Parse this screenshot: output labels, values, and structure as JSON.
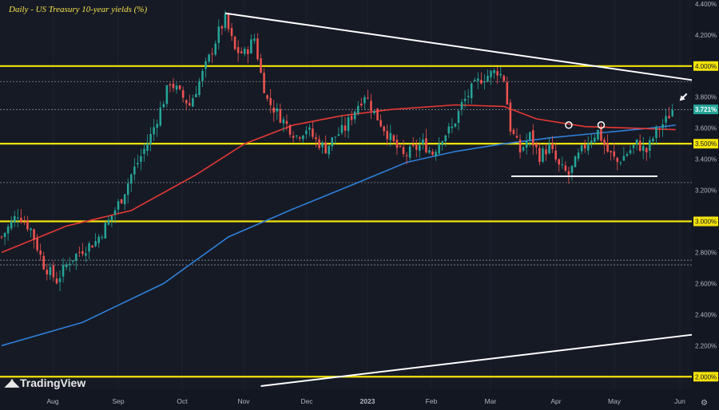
{
  "chart_data": {
    "type": "candlestick",
    "title": "Daily - US Treasury 10-year yields (%)",
    "ylim": [
      1.95,
      4.42
    ],
    "y_ticks": [
      "4.400%",
      "4.200%",
      "4.000%",
      "3.800%",
      "3.600%",
      "3.500%",
      "3.400%",
      "3.200%",
      "3.000%",
      "2.800%",
      "2.600%",
      "2.400%",
      "2.200%",
      "2.000%"
    ],
    "x_ticks": [
      "Aug",
      "Sep",
      "Oct",
      "Nov",
      "Dec",
      "2023",
      "Feb",
      "Mar",
      "Apr",
      "May",
      "Jun"
    ],
    "last_price_label": "3.721%",
    "horizontal_levels": [
      4.0,
      3.5,
      3.0,
      2.0
    ],
    "dotted_levels": [
      3.9,
      3.72,
      3.25,
      2.75,
      2.72
    ],
    "support_line": {
      "from_month": "Mar",
      "to_month": "May",
      "value": 3.29
    },
    "close_path": [
      [
        0,
        2.9
      ],
      [
        5,
        3.05
      ],
      [
        9,
        2.95
      ],
      [
        13,
        2.72
      ],
      [
        17,
        2.62
      ],
      [
        21,
        2.75
      ],
      [
        25,
        2.82
      ],
      [
        29,
        2.87
      ],
      [
        33,
        3.0
      ],
      [
        37,
        3.15
      ],
      [
        40,
        3.3
      ],
      [
        43,
        3.42
      ],
      [
        46,
        3.55
      ],
      [
        49,
        3.72
      ],
      [
        52,
        3.9
      ],
      [
        55,
        3.82
      ],
      [
        58,
        3.75
      ],
      [
        61,
        3.9
      ],
      [
        64,
        4.05
      ],
      [
        67,
        4.22
      ],
      [
        69,
        4.3
      ],
      [
        72,
        4.1
      ],
      [
        75,
        4.08
      ],
      [
        78,
        4.18
      ],
      [
        80,
        3.95
      ],
      [
        82,
        3.78
      ],
      [
        85,
        3.7
      ],
      [
        88,
        3.62
      ],
      [
        91,
        3.55
      ],
      [
        94,
        3.6
      ],
      [
        97,
        3.52
      ],
      [
        100,
        3.47
      ],
      [
        103,
        3.55
      ],
      [
        106,
        3.6
      ],
      [
        109,
        3.72
      ],
      [
        112,
        3.82
      ],
      [
        115,
        3.7
      ],
      [
        118,
        3.6
      ],
      [
        121,
        3.5
      ],
      [
        124,
        3.42
      ],
      [
        127,
        3.46
      ],
      [
        130,
        3.5
      ],
      [
        133,
        3.44
      ],
      [
        136,
        3.55
      ],
      [
        139,
        3.6
      ],
      [
        142,
        3.75
      ],
      [
        145,
        3.85
      ],
      [
        148,
        3.92
      ],
      [
        151,
        3.95
      ],
      [
        153,
        3.97
      ],
      [
        155,
        3.92
      ],
      [
        157,
        3.6
      ],
      [
        160,
        3.45
      ],
      [
        163,
        3.55
      ],
      [
        166,
        3.42
      ],
      [
        169,
        3.48
      ],
      [
        172,
        3.35
      ],
      [
        175,
        3.3
      ],
      [
        178,
        3.42
      ],
      [
        181,
        3.52
      ],
      [
        184,
        3.58
      ],
      [
        187,
        3.45
      ],
      [
        190,
        3.38
      ],
      [
        193,
        3.44
      ],
      [
        196,
        3.5
      ],
      [
        199,
        3.45
      ],
      [
        202,
        3.58
      ],
      [
        205,
        3.65
      ],
      [
        207,
        3.72
      ]
    ],
    "ma_red": [
      [
        0,
        2.8
      ],
      [
        20,
        2.97
      ],
      [
        40,
        3.07
      ],
      [
        60,
        3.3
      ],
      [
        75,
        3.5
      ],
      [
        90,
        3.62
      ],
      [
        105,
        3.68
      ],
      [
        120,
        3.72
      ],
      [
        140,
        3.75
      ],
      [
        155,
        3.74
      ],
      [
        165,
        3.66
      ],
      [
        180,
        3.61
      ],
      [
        195,
        3.6
      ],
      [
        208,
        3.59
      ]
    ],
    "ma_blue": [
      [
        0,
        2.2
      ],
      [
        25,
        2.35
      ],
      [
        50,
        2.6
      ],
      [
        70,
        2.9
      ],
      [
        90,
        3.08
      ],
      [
        110,
        3.25
      ],
      [
        125,
        3.38
      ],
      [
        140,
        3.45
      ],
      [
        155,
        3.5
      ],
      [
        170,
        3.54
      ],
      [
        185,
        3.57
      ],
      [
        200,
        3.6
      ],
      [
        208,
        3.62
      ]
    ],
    "trendline_down": [
      [
        69,
        4.34
      ],
      [
        208,
        3.91
      ]
    ],
    "trendline_up": [
      [
        80,
        1.94
      ],
      [
        208,
        2.27
      ]
    ],
    "markers": [
      {
        "type": "circle",
        "x": 175,
        "y": 3.62
      },
      {
        "type": "circle",
        "x": 185,
        "y": 3.62
      },
      {
        "type": "arrow",
        "x": 207,
        "y": 3.75
      }
    ]
  },
  "branding": {
    "logo_text": "TradingView"
  }
}
